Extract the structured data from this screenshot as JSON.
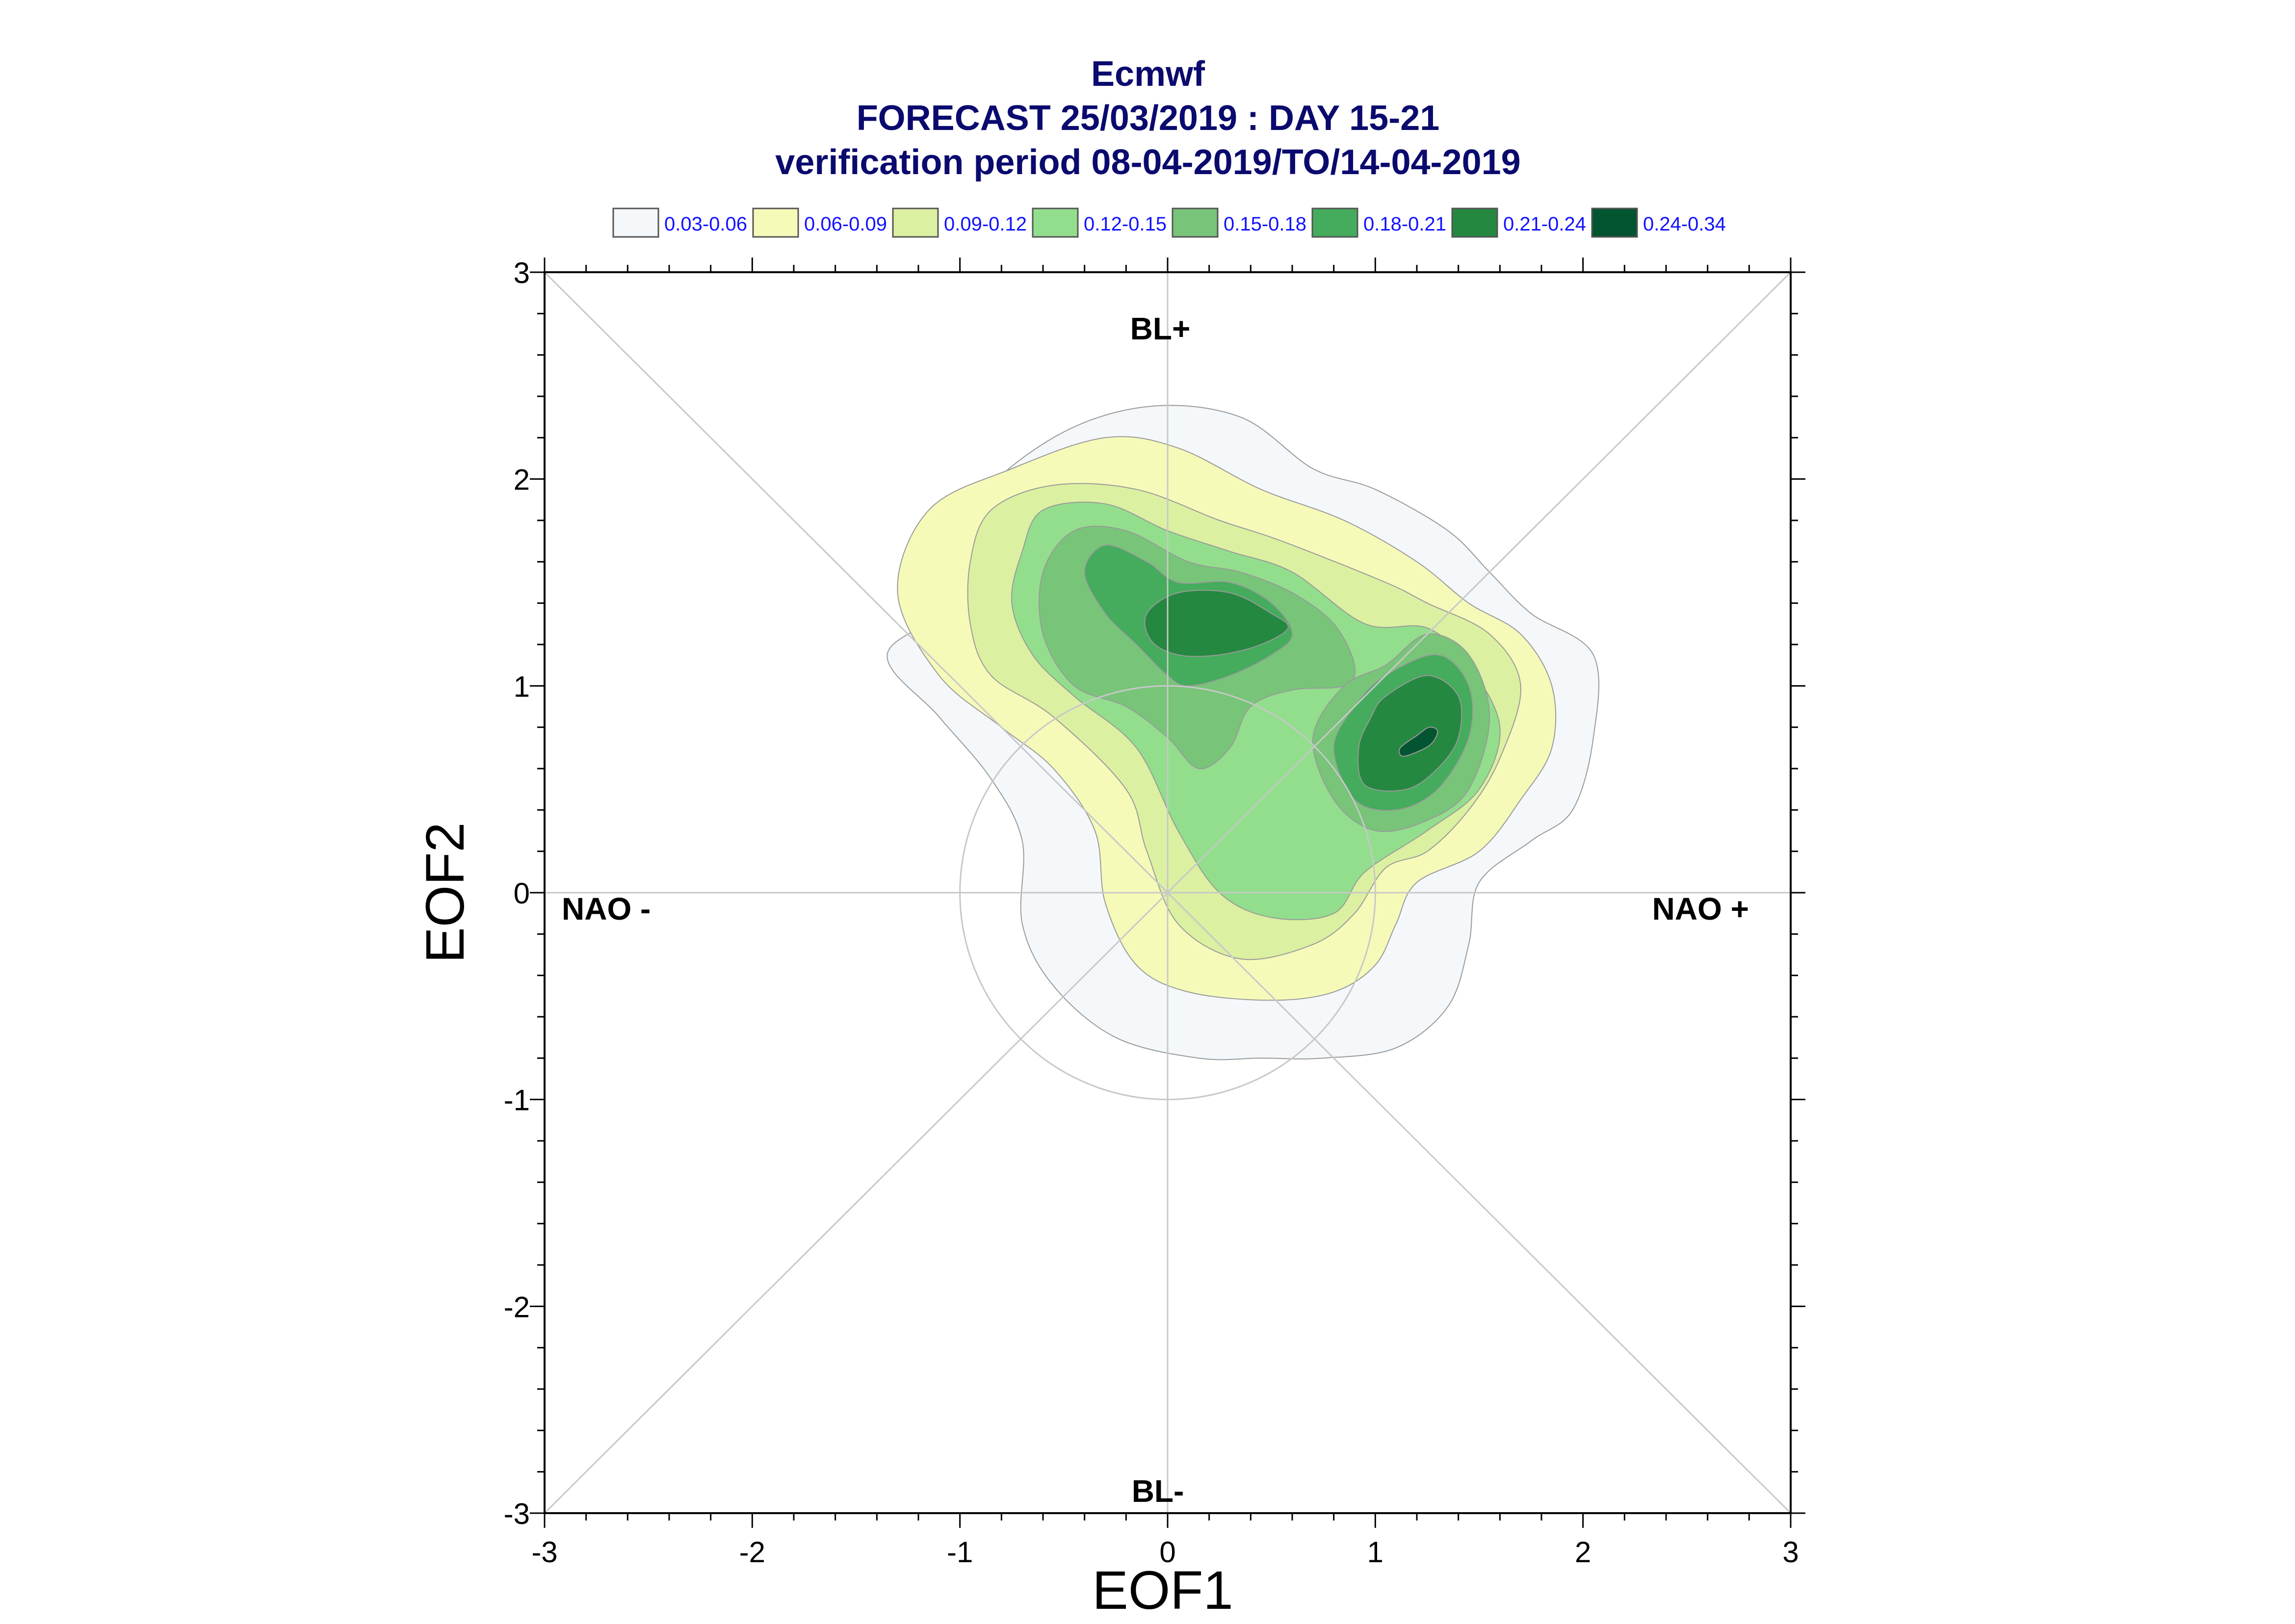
{
  "title_lines": [
    "Ecmwf",
    "FORECAST 25/03/2019 : DAY 15-21",
    "verification period 08-04-2019/TO/14-04-2019"
  ],
  "legend": [
    {
      "label": "0.03-0.06",
      "color": "#f4f8fb"
    },
    {
      "label": "0.06-0.09",
      "color": "#f6fab9"
    },
    {
      "label": "0.09-0.12",
      "color": "#dcf0a2"
    },
    {
      "label": "0.12-0.15",
      "color": "#92de8c"
    },
    {
      "label": "0.15-0.18",
      "color": "#78c479"
    },
    {
      "label": "0.18-0.21",
      "color": "#44ac5c"
    },
    {
      "label": "0.21-0.24",
      "color": "#258840"
    },
    {
      "label": "0.24-0.34",
      "color": "#025530"
    }
  ],
  "chart_data": {
    "type": "contour",
    "xlabel": "EOF1",
    "ylabel": "EOF2",
    "xlim": [
      -3,
      3
    ],
    "ylim": [
      -3,
      3
    ],
    "xticks": [
      -3,
      -2,
      -1,
      0,
      1,
      2,
      3
    ],
    "yticks": [
      -3,
      -2,
      -1,
      0,
      1,
      2,
      3
    ],
    "regime_labels": {
      "top": "BL+",
      "bottom": "BL-",
      "left": "NAO -",
      "right": "NAO +"
    },
    "reference_circle_radius": 1,
    "density_levels": [
      0.03,
      0.06,
      0.09,
      0.12,
      0.15,
      0.18,
      0.21,
      0.24,
      0.34
    ],
    "contours": [
      {
        "level": "0.03-0.06",
        "points": [
          [
            -1.05,
            1.4
          ],
          [
            -0.95,
            1.85
          ],
          [
            -0.55,
            2.2
          ],
          [
            -0.1,
            2.35
          ],
          [
            0.35,
            2.3
          ],
          [
            0.7,
            2.05
          ],
          [
            1.0,
            1.95
          ],
          [
            1.35,
            1.75
          ],
          [
            1.55,
            1.55
          ],
          [
            1.75,
            1.35
          ],
          [
            2.05,
            1.15
          ],
          [
            2.05,
            0.75
          ],
          [
            1.95,
            0.4
          ],
          [
            1.75,
            0.25
          ],
          [
            1.5,
            0.05
          ],
          [
            1.45,
            -0.25
          ],
          [
            1.35,
            -0.55
          ],
          [
            1.1,
            -0.75
          ],
          [
            0.75,
            -0.8
          ],
          [
            0.45,
            -0.8
          ],
          [
            0.15,
            -0.8
          ],
          [
            -0.25,
            -0.7
          ],
          [
            -0.55,
            -0.45
          ],
          [
            -0.7,
            -0.15
          ],
          [
            -0.7,
            0.25
          ],
          [
            -0.85,
            0.55
          ],
          [
            -1.1,
            0.85
          ],
          [
            -1.35,
            1.15
          ]
        ]
      },
      {
        "level": "0.06-0.09",
        "points": [
          [
            -1.3,
            1.45
          ],
          [
            -1.15,
            1.85
          ],
          [
            -0.75,
            2.05
          ],
          [
            -0.3,
            2.2
          ],
          [
            0.05,
            2.15
          ],
          [
            0.45,
            1.95
          ],
          [
            0.85,
            1.8
          ],
          [
            1.2,
            1.6
          ],
          [
            1.45,
            1.4
          ],
          [
            1.7,
            1.25
          ],
          [
            1.85,
            1.0
          ],
          [
            1.85,
            0.7
          ],
          [
            1.7,
            0.45
          ],
          [
            1.5,
            0.2
          ],
          [
            1.2,
            0.05
          ],
          [
            1.1,
            -0.15
          ],
          [
            1.0,
            -0.35
          ],
          [
            0.8,
            -0.48
          ],
          [
            0.5,
            -0.52
          ],
          [
            0.1,
            -0.48
          ],
          [
            -0.15,
            -0.35
          ],
          [
            -0.3,
            -0.05
          ],
          [
            -0.35,
            0.3
          ],
          [
            -0.55,
            0.6
          ],
          [
            -0.8,
            0.8
          ],
          [
            -1.1,
            1.05
          ]
        ]
      },
      {
        "level": "0.09-0.12",
        "points": [
          [
            -0.95,
            1.6
          ],
          [
            -0.85,
            1.85
          ],
          [
            -0.55,
            1.97
          ],
          [
            -0.15,
            1.95
          ],
          [
            0.25,
            1.8
          ],
          [
            0.55,
            1.7
          ],
          [
            1.05,
            1.5
          ],
          [
            1.25,
            1.4
          ],
          [
            1.55,
            1.25
          ],
          [
            1.7,
            1.0
          ],
          [
            1.6,
            0.65
          ],
          [
            1.45,
            0.4
          ],
          [
            1.25,
            0.2
          ],
          [
            1.05,
            0.12
          ],
          [
            0.9,
            -0.1
          ],
          [
            0.7,
            -0.25
          ],
          [
            0.35,
            -0.32
          ],
          [
            0.05,
            -0.15
          ],
          [
            -0.1,
            0.2
          ],
          [
            -0.2,
            0.5
          ],
          [
            -0.55,
            0.85
          ],
          [
            -0.85,
            1.05
          ],
          [
            -0.95,
            1.3
          ]
        ]
      },
      {
        "level": "0.12-0.15",
        "points": [
          [
            -0.7,
            1.65
          ],
          [
            -0.6,
            1.85
          ],
          [
            -0.3,
            1.88
          ],
          [
            0.0,
            1.75
          ],
          [
            0.3,
            1.65
          ],
          [
            0.6,
            1.55
          ],
          [
            0.95,
            1.3
          ],
          [
            1.25,
            1.28
          ],
          [
            1.45,
            1.1
          ],
          [
            1.6,
            0.8
          ],
          [
            1.5,
            0.5
          ],
          [
            1.25,
            0.3
          ],
          [
            0.95,
            0.1
          ],
          [
            0.8,
            -0.1
          ],
          [
            0.5,
            -0.12
          ],
          [
            0.25,
            0.0
          ],
          [
            0.05,
            0.3
          ],
          [
            -0.15,
            0.7
          ],
          [
            -0.45,
            0.95
          ],
          [
            -0.65,
            1.15
          ],
          [
            -0.75,
            1.4
          ]
        ]
      },
      {
        "level": "0.15-0.18",
        "points": [
          [
            -0.6,
            1.55
          ],
          [
            -0.45,
            1.75
          ],
          [
            -0.2,
            1.75
          ],
          [
            0.1,
            1.6
          ],
          [
            0.35,
            1.55
          ],
          [
            0.6,
            1.45
          ],
          [
            0.8,
            1.3
          ],
          [
            0.9,
            1.1
          ],
          [
            0.85,
            1.0
          ],
          [
            0.6,
            0.98
          ],
          [
            0.4,
            0.9
          ],
          [
            0.3,
            0.7
          ],
          [
            0.15,
            0.6
          ],
          [
            0.0,
            0.75
          ],
          [
            -0.2,
            0.9
          ],
          [
            -0.45,
            1.0
          ],
          [
            -0.6,
            1.25
          ]
        ]
      },
      {
        "level": "0.15-0.18",
        "points": [
          [
            1.05,
            1.1
          ],
          [
            1.25,
            1.25
          ],
          [
            1.45,
            1.15
          ],
          [
            1.55,
            0.85
          ],
          [
            1.45,
            0.5
          ],
          [
            1.25,
            0.35
          ],
          [
            1.0,
            0.3
          ],
          [
            0.8,
            0.45
          ],
          [
            0.7,
            0.75
          ],
          [
            0.85,
            1.0
          ]
        ]
      },
      {
        "level": "0.18-0.21",
        "points": [
          [
            -0.4,
            1.55
          ],
          [
            -0.3,
            1.68
          ],
          [
            -0.1,
            1.6
          ],
          [
            0.05,
            1.5
          ],
          [
            0.3,
            1.5
          ],
          [
            0.5,
            1.4
          ],
          [
            0.6,
            1.25
          ],
          [
            0.5,
            1.15
          ],
          [
            0.3,
            1.05
          ],
          [
            0.1,
            1.0
          ],
          [
            0.0,
            1.05
          ],
          [
            -0.15,
            1.2
          ],
          [
            -0.3,
            1.35
          ]
        ]
      },
      {
        "level": "0.18-0.21",
        "points": [
          [
            1.05,
            1.05
          ],
          [
            1.3,
            1.15
          ],
          [
            1.45,
            1.0
          ],
          [
            1.45,
            0.75
          ],
          [
            1.3,
            0.5
          ],
          [
            1.1,
            0.4
          ],
          [
            0.9,
            0.45
          ],
          [
            0.8,
            0.7
          ],
          [
            0.9,
            0.9
          ]
        ]
      },
      {
        "level": "0.21-0.24",
        "points": [
          [
            -0.1,
            1.35
          ],
          [
            0.05,
            1.45
          ],
          [
            0.3,
            1.45
          ],
          [
            0.5,
            1.35
          ],
          [
            0.58,
            1.28
          ],
          [
            0.45,
            1.2
          ],
          [
            0.25,
            1.15
          ],
          [
            0.05,
            1.15
          ],
          [
            -0.08,
            1.22
          ]
        ]
      },
      {
        "level": "0.21-0.24",
        "points": [
          [
            1.05,
            0.95
          ],
          [
            1.25,
            1.05
          ],
          [
            1.4,
            0.95
          ],
          [
            1.4,
            0.75
          ],
          [
            1.3,
            0.6
          ],
          [
            1.15,
            0.5
          ],
          [
            0.95,
            0.52
          ],
          [
            0.92,
            0.7
          ],
          [
            0.98,
            0.85
          ]
        ]
      },
      {
        "level": "0.24-0.34",
        "points": [
          [
            1.12,
            0.7
          ],
          [
            1.2,
            0.76
          ],
          [
            1.26,
            0.8
          ],
          [
            1.3,
            0.78
          ],
          [
            1.27,
            0.72
          ],
          [
            1.2,
            0.68
          ],
          [
            1.13,
            0.66
          ]
        ]
      }
    ]
  }
}
